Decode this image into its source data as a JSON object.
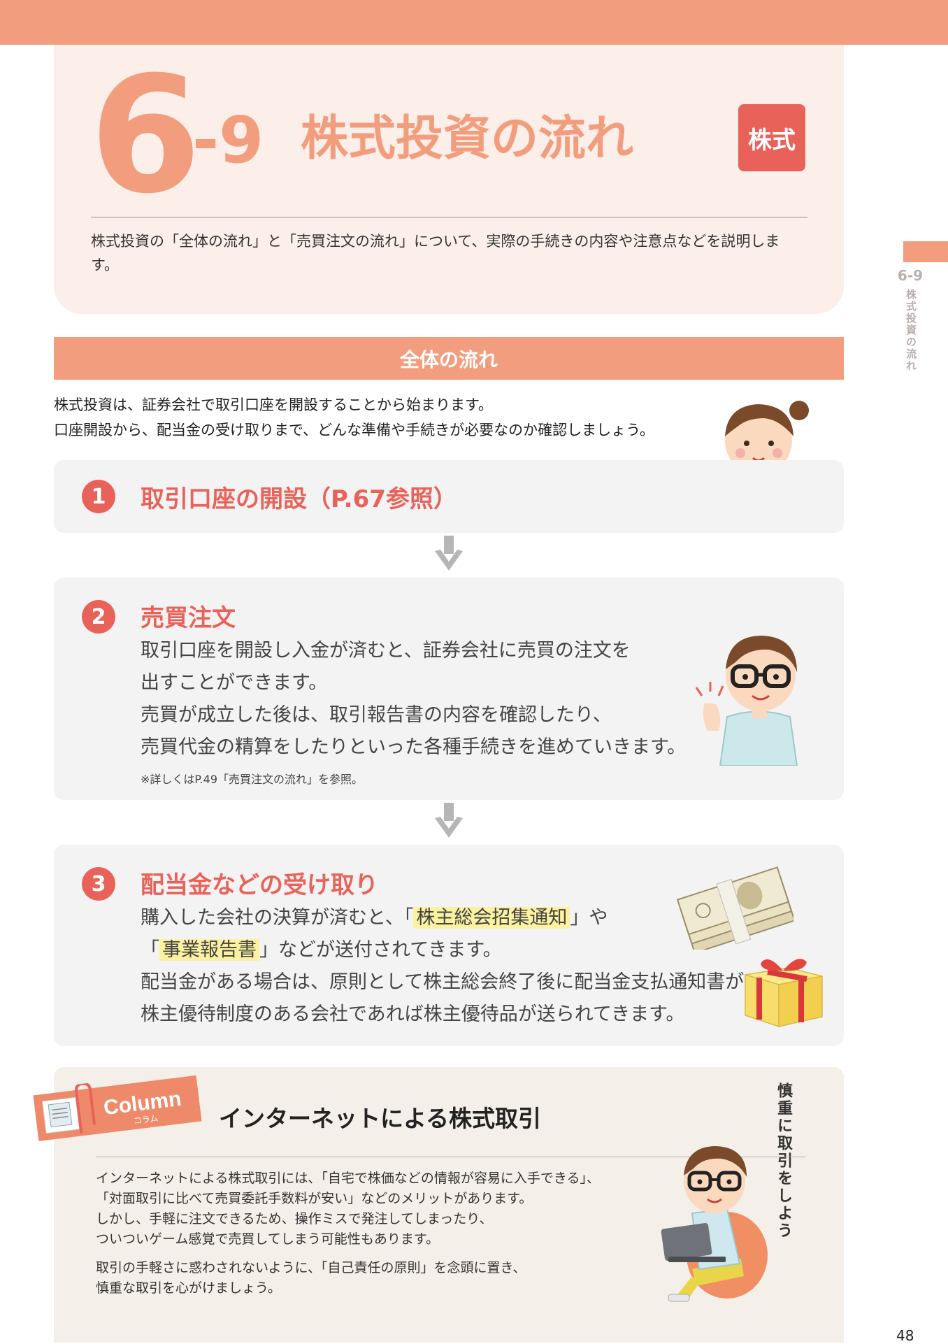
{
  "header": {
    "chapter_number": "6",
    "section_number": "-9",
    "title": "株式投資の流れ",
    "badge": "株式",
    "intro": "株式投資の「全体の流れ」と「売買注文の流れ」について、実際の手続きの内容や注意点などを説明します。"
  },
  "side_index": {
    "number": "6-9",
    "label": "株式投資の流れ"
  },
  "flow": {
    "heading": "全体の流れ",
    "intro_lines": [
      "株式投資は、証券会社で取引口座を開設することから始まります。",
      "口座開設から、配当金の受け取りまで、どんな準備や手続きが必要なのか確認しましょう。"
    ],
    "steps": [
      {
        "number": "1",
        "title": "取引口座の開設（P.67参照）"
      },
      {
        "number": "2",
        "title": "売買注文",
        "lines": [
          "取引口座を開設し入金が済むと、証券会社に売買の注文を",
          "出すことができます。",
          "売買が成立した後は、取引報告書の内容を確認したり、",
          "売買代金の精算をしたりといった各種手続きを進めていきます。"
        ],
        "note": "※詳しくはP.49「売買注文の流れ」を参照。"
      },
      {
        "number": "3",
        "title": "配当金などの受け取り",
        "line1_pre": "購入した会社の決算が済むと、「",
        "line1_hl": "株主総会招集通知",
        "line1_post": "」や",
        "line2_pre": "「",
        "line2_hl": "事業報告書",
        "line2_post": "」などが送付されてきます。",
        "line3": "配当金がある場合は、原則として株主総会終了後に配当金支払通知書が、",
        "line4": "株主優待制度のある会社であれば株主優待品が送られてきます。"
      }
    ]
  },
  "column": {
    "tag": "Column",
    "tag_sub": "コラム",
    "title": "インターネットによる株式取引",
    "vertical_note": "慎重に取引をしよう",
    "paragraph1": [
      "インターネットによる株式取引には、「自宅で株価などの情報が容易に入手できる」、",
      "「対面取引に比べて売買委託手数料が安い」などのメリットがあります。",
      "しかし、手軽に注文できるため、操作ミスで発注してしまったり、",
      "ついついゲーム感覚で売買してしまう可能性もあります。"
    ],
    "paragraph2": [
      "取引の手軽さに惑わされないように、「自己責任の原則」を念頭に置き、",
      "慎重な取引を心がけましょう。"
    ]
  },
  "page_number": "48",
  "colors": {
    "accent": "#f29e7e",
    "red": "#e9625a",
    "highlight": "#fbf2a0"
  }
}
